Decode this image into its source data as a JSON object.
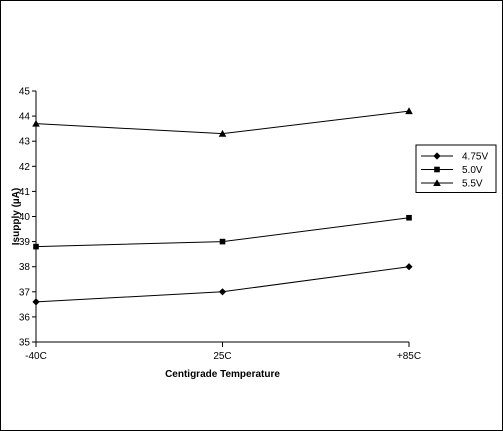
{
  "chart_data": {
    "type": "line",
    "title": "",
    "xlabel": "Centigrade Temperature",
    "ylabel": "Isupply (µA)",
    "categories": [
      "-40C",
      "25C",
      "+85C"
    ],
    "ylim": [
      35,
      45
    ],
    "yticks": [
      35,
      36,
      37,
      38,
      39,
      40,
      41,
      42,
      43,
      44,
      45
    ],
    "grid": false,
    "legend_position": "right",
    "series": [
      {
        "name": "4.75V",
        "marker": "diamond",
        "values": [
          36.6,
          37.0,
          38.0
        ]
      },
      {
        "name": "5.0V",
        "marker": "square",
        "values": [
          38.8,
          39.0,
          39.95
        ]
      },
      {
        "name": "5.5V",
        "marker": "triangle",
        "values": [
          43.7,
          43.3,
          44.2
        ]
      }
    ],
    "colors": {
      "line": "#000000",
      "marker": "#000000"
    }
  }
}
